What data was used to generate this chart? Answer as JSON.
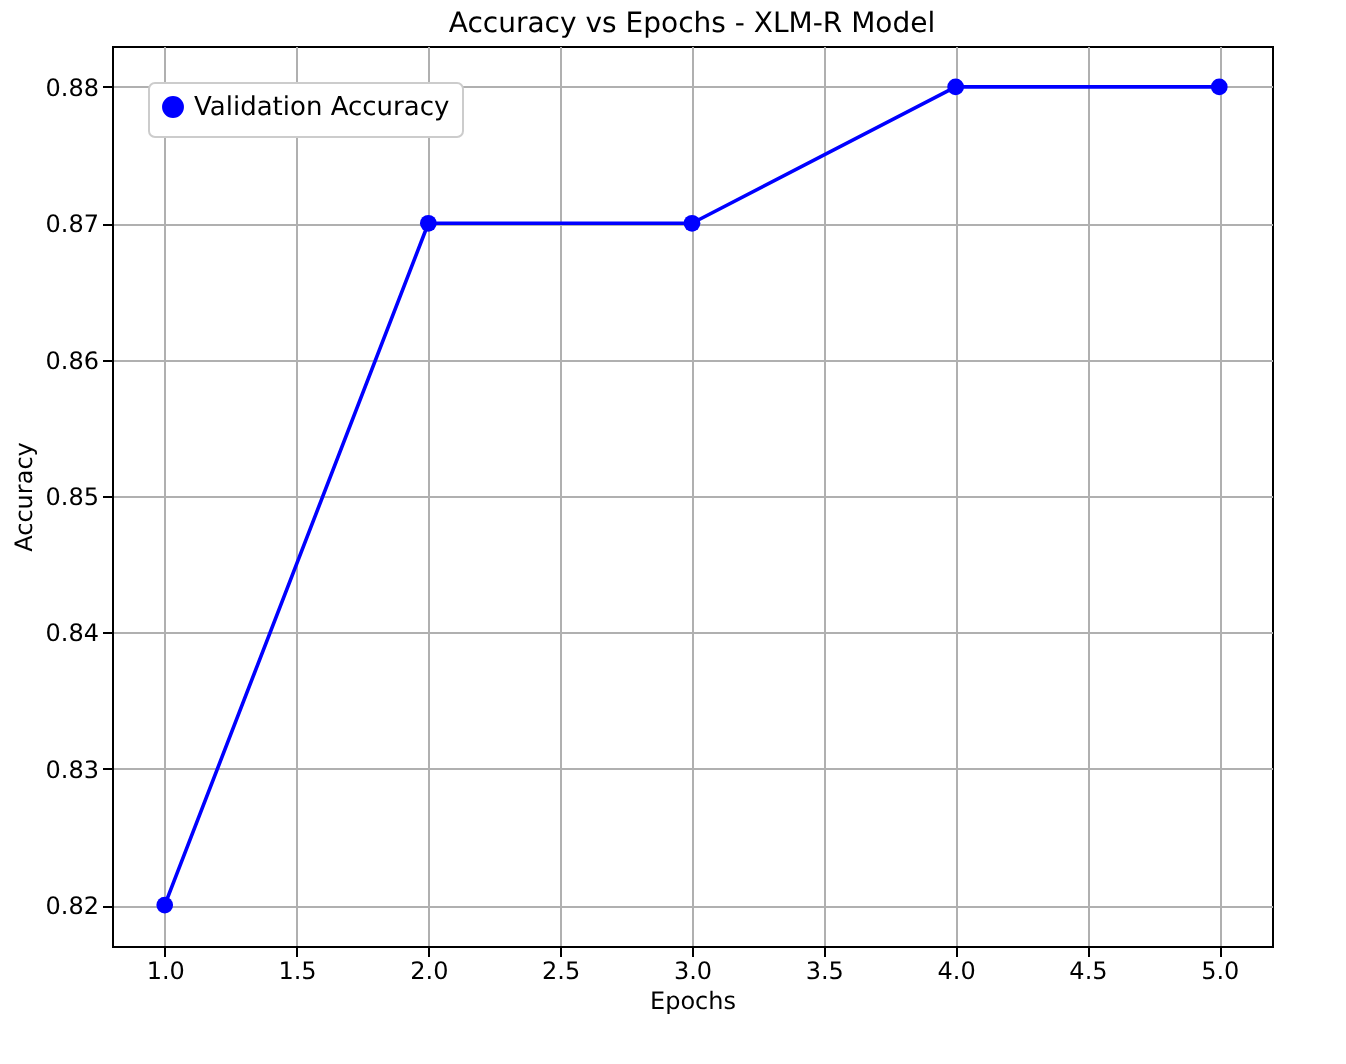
{
  "chart_data": {
    "type": "line",
    "title": "Accuracy vs Epochs - XLM-R Model",
    "xlabel": "Epochs",
    "ylabel": "Accuracy",
    "x": [
      1,
      2,
      3,
      4,
      5
    ],
    "series": [
      {
        "name": "Validation Accuracy",
        "color": "#0000ff",
        "values": [
          0.82,
          0.87,
          0.87,
          0.88,
          0.88
        ]
      }
    ],
    "xlim": [
      0.8,
      5.2
    ],
    "ylim": [
      0.817,
      0.883
    ],
    "xticks": [
      {
        "value": 1,
        "label": "1.0"
      },
      {
        "value": 1.5,
        "label": "1.5"
      },
      {
        "value": 2,
        "label": "2.0"
      },
      {
        "value": 2.5,
        "label": "2.5"
      },
      {
        "value": 3,
        "label": "3.0"
      },
      {
        "value": 3.5,
        "label": "3.5"
      },
      {
        "value": 4,
        "label": "4.0"
      },
      {
        "value": 4.5,
        "label": "4.5"
      },
      {
        "value": 5,
        "label": "5.0"
      }
    ],
    "yticks": [
      0.82,
      0.83,
      0.84,
      0.85,
      0.86,
      0.87,
      0.88
    ],
    "grid": true,
    "legend": "top left",
    "marker": "circle",
    "line_style": "solid"
  }
}
